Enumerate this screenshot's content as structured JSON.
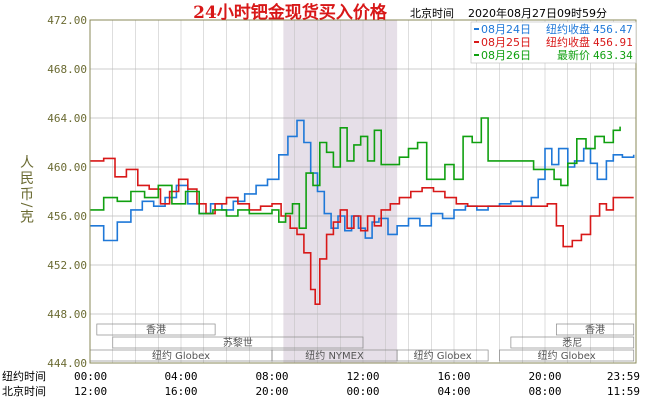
{
  "header": {
    "title": "24小时钯金现货买入价格",
    "timezone_label": "北京时间",
    "timestamp": "2020年08月27日09时59分"
  },
  "chart_data": {
    "type": "line",
    "ylabel": "人民币/克",
    "ylim": [
      444,
      472
    ],
    "yticks": [
      "472.00",
      "468.00",
      "464.00",
      "460.00",
      "456.00",
      "452.00",
      "448.00",
      "444.00"
    ],
    "ytick_values": [
      472,
      468,
      464,
      460,
      456,
      452,
      448,
      444
    ],
    "x_hours": 24,
    "xaxis_rows": [
      {
        "label": "纽约时间",
        "ticks": [
          "00:00",
          "04:00",
          "08:00",
          "12:00",
          "16:00",
          "20:00",
          "23:59"
        ]
      },
      {
        "label": "北京时间",
        "ticks": [
          "12:00",
          "16:00",
          "20:00",
          "00:00",
          "04:00",
          "08:00",
          "11:59"
        ]
      }
    ],
    "xtick_hours": [
      0,
      4,
      8,
      12,
      16,
      20,
      24
    ],
    "shaded_range_hours": [
      8.5,
      13.5
    ],
    "sessions": [
      {
        "label": "香港",
        "row": 0,
        "start_h": 0.3,
        "end_h": 5.5
      },
      {
        "label": "香港",
        "row": 0,
        "start_h": 20.5,
        "end_h": 23.9
      },
      {
        "label": "苏黎世",
        "row": 1,
        "start_h": 1.0,
        "end_h": 12.0
      },
      {
        "label": "悉尼",
        "row": 1,
        "start_h": 18.5,
        "end_h": 23.9
      },
      {
        "label": "纽约 Globex",
        "row": 2,
        "start_h": 0.0,
        "end_h": 8.0
      },
      {
        "label": "纽约 NYMEX",
        "row": 2,
        "start_h": 8.0,
        "end_h": 13.5
      },
      {
        "label": "纽约 Globex",
        "row": 2,
        "start_h": 13.5,
        "end_h": 17.5
      },
      {
        "label": "纽约 Globex",
        "row": 2,
        "start_h": 18.0,
        "end_h": 23.9
      }
    ],
    "legend": {
      "placement": "top-right"
    },
    "series": [
      {
        "name": "08月24日",
        "value_label": "纽约收盘",
        "value": "456.47",
        "color": "#1f78d8",
        "points": [
          [
            0,
            455.2
          ],
          [
            0.6,
            454.0
          ],
          [
            1.2,
            455.5
          ],
          [
            1.8,
            456.5
          ],
          [
            2.3,
            457.2
          ],
          [
            2.8,
            456.8
          ],
          [
            3.3,
            457.5
          ],
          [
            3.8,
            458.5
          ],
          [
            4.3,
            457.0
          ],
          [
            4.8,
            456.2
          ],
          [
            5.3,
            457.0
          ],
          [
            5.8,
            456.5
          ],
          [
            6.3,
            457.2
          ],
          [
            6.8,
            457.8
          ],
          [
            7.3,
            458.5
          ],
          [
            7.8,
            459.0
          ],
          [
            8.3,
            461.0
          ],
          [
            8.7,
            462.5
          ],
          [
            9.1,
            463.8
          ],
          [
            9.4,
            462.0
          ],
          [
            9.7,
            459.5
          ],
          [
            10.0,
            458.0
          ],
          [
            10.3,
            456.2
          ],
          [
            10.6,
            455.0
          ],
          [
            10.9,
            456.0
          ],
          [
            11.2,
            454.8
          ],
          [
            11.5,
            456.0
          ],
          [
            11.8,
            455.0
          ],
          [
            12.1,
            454.2
          ],
          [
            12.4,
            455.5
          ],
          [
            12.7,
            455.8
          ],
          [
            13.1,
            454.5
          ],
          [
            13.5,
            455.2
          ],
          [
            14.0,
            455.8
          ],
          [
            14.5,
            455.2
          ],
          [
            15.0,
            456.2
          ],
          [
            15.5,
            455.8
          ],
          [
            16.0,
            456.5
          ],
          [
            16.5,
            456.8
          ],
          [
            17.0,
            456.5
          ],
          [
            17.5,
            456.8
          ],
          [
            18.0,
            457.0
          ],
          [
            18.5,
            457.2
          ],
          [
            19.0,
            456.8
          ],
          [
            19.4,
            457.5
          ],
          [
            19.7,
            459.0
          ],
          [
            20.0,
            461.5
          ],
          [
            20.3,
            460.2
          ],
          [
            20.6,
            461.5
          ],
          [
            21.0,
            460.0
          ],
          [
            21.3,
            460.5
          ],
          [
            21.7,
            461.5
          ],
          [
            22.0,
            460.3
          ],
          [
            22.3,
            459.0
          ],
          [
            22.7,
            460.5
          ],
          [
            23.0,
            461.0
          ],
          [
            23.4,
            460.8
          ],
          [
            23.9,
            461.0
          ]
        ]
      },
      {
        "name": "08月25日",
        "value_label": "纽约收盘",
        "value": "456.91",
        "color": "#d81818",
        "points": [
          [
            0,
            460.5
          ],
          [
            0.6,
            460.7
          ],
          [
            1.1,
            459.2
          ],
          [
            1.6,
            459.8
          ],
          [
            2.1,
            458.5
          ],
          [
            2.6,
            458.2
          ],
          [
            3.1,
            457.0
          ],
          [
            3.5,
            458.0
          ],
          [
            3.9,
            459.0
          ],
          [
            4.3,
            458.2
          ],
          [
            4.7,
            457.0
          ],
          [
            5.1,
            456.2
          ],
          [
            5.5,
            457.0
          ],
          [
            6.0,
            457.5
          ],
          [
            6.5,
            457.0
          ],
          [
            7.0,
            456.5
          ],
          [
            7.5,
            456.8
          ],
          [
            8.0,
            457.0
          ],
          [
            8.4,
            456.0
          ],
          [
            8.8,
            455.0
          ],
          [
            9.1,
            454.5
          ],
          [
            9.4,
            453.0
          ],
          [
            9.7,
            450.0
          ],
          [
            9.9,
            448.8
          ],
          [
            10.1,
            452.5
          ],
          [
            10.4,
            454.5
          ],
          [
            10.7,
            455.5
          ],
          [
            11.0,
            456.5
          ],
          [
            11.3,
            455.0
          ],
          [
            11.6,
            456.0
          ],
          [
            11.9,
            454.8
          ],
          [
            12.2,
            456.0
          ],
          [
            12.5,
            455.2
          ],
          [
            12.8,
            456.5
          ],
          [
            13.2,
            457.0
          ],
          [
            13.6,
            457.5
          ],
          [
            14.1,
            458.0
          ],
          [
            14.6,
            458.3
          ],
          [
            15.1,
            458.0
          ],
          [
            15.6,
            457.5
          ],
          [
            16.1,
            457.0
          ],
          [
            16.6,
            456.8
          ],
          [
            17.1,
            456.8
          ],
          [
            17.6,
            456.8
          ],
          [
            18.1,
            456.8
          ],
          [
            18.6,
            456.8
          ],
          [
            19.1,
            456.8
          ],
          [
            19.6,
            456.8
          ],
          [
            20.1,
            457.0
          ],
          [
            20.5,
            455.2
          ],
          [
            20.8,
            453.5
          ],
          [
            21.2,
            454.0
          ],
          [
            21.6,
            454.5
          ],
          [
            22.0,
            456.0
          ],
          [
            22.4,
            457.0
          ],
          [
            22.7,
            456.5
          ],
          [
            23.0,
            457.5
          ],
          [
            23.4,
            457.5
          ],
          [
            23.9,
            457.5
          ]
        ]
      },
      {
        "name": "08月26日",
        "value_label": "最新价",
        "value": "463.34",
        "color": "#10a010",
        "points": [
          [
            0,
            456.5
          ],
          [
            0.6,
            457.5
          ],
          [
            1.2,
            457.2
          ],
          [
            1.8,
            458.0
          ],
          [
            2.4,
            457.5
          ],
          [
            3.0,
            458.5
          ],
          [
            3.6,
            457.0
          ],
          [
            4.2,
            458.0
          ],
          [
            4.8,
            456.2
          ],
          [
            5.4,
            456.5
          ],
          [
            6.0,
            456.0
          ],
          [
            6.5,
            456.5
          ],
          [
            7.0,
            456.2
          ],
          [
            7.5,
            456.2
          ],
          [
            8.0,
            456.5
          ],
          [
            8.3,
            455.5
          ],
          [
            8.6,
            456.2
          ],
          [
            8.9,
            457.0
          ],
          [
            9.2,
            455.0
          ],
          [
            9.5,
            459.5
          ],
          [
            9.8,
            458.5
          ],
          [
            10.1,
            462.0
          ],
          [
            10.4,
            461.2
          ],
          [
            10.7,
            460.0
          ],
          [
            11.0,
            463.2
          ],
          [
            11.3,
            460.5
          ],
          [
            11.6,
            461.8
          ],
          [
            11.9,
            462.5
          ],
          [
            12.2,
            460.5
          ],
          [
            12.5,
            463.0
          ],
          [
            12.8,
            460.2
          ],
          [
            13.2,
            460.2
          ],
          [
            13.6,
            460.8
          ],
          [
            14.0,
            461.5
          ],
          [
            14.4,
            462.0
          ],
          [
            14.8,
            459.0
          ],
          [
            15.2,
            459.0
          ],
          [
            15.6,
            460.2
          ],
          [
            16.0,
            459.0
          ],
          [
            16.4,
            462.5
          ],
          [
            16.8,
            462.0
          ],
          [
            17.2,
            464.0
          ],
          [
            17.5,
            460.5
          ],
          [
            18.0,
            460.5
          ],
          [
            18.5,
            460.5
          ],
          [
            19.0,
            460.5
          ],
          [
            19.5,
            459.8
          ],
          [
            20.0,
            459.8
          ],
          [
            20.4,
            459.0
          ],
          [
            20.7,
            458.5
          ],
          [
            21.0,
            460.3
          ],
          [
            21.4,
            462.3
          ],
          [
            21.8,
            461.5
          ],
          [
            22.2,
            462.5
          ],
          [
            22.6,
            462.0
          ],
          [
            23.0,
            463.0
          ],
          [
            23.3,
            463.3
          ]
        ]
      }
    ]
  }
}
